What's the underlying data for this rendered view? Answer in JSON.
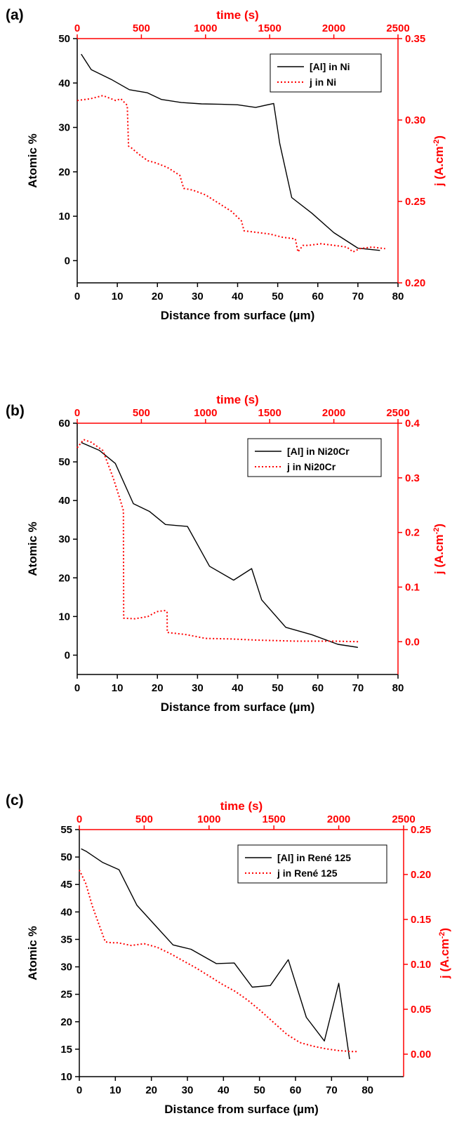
{
  "colors": {
    "aluminium": "#000000",
    "current": "#ff0000",
    "axis_black": "#000000",
    "axis_red": "#ff0000"
  },
  "chart_data": [
    {
      "panel": "(a)",
      "type": "line",
      "xlabel": "Distance from surface (µm)",
      "ylabel": "Atomic %",
      "x2label": "time (s)",
      "y2label": "j (A.cm-2)",
      "xlim": [
        0,
        80
      ],
      "ylim": [
        -5,
        50
      ],
      "x2lim": [
        0,
        2500
      ],
      "y2lim": [
        0.2,
        0.35
      ],
      "xticks": [
        0,
        10,
        20,
        30,
        40,
        50,
        60,
        70,
        80
      ],
      "yticks": [
        0,
        10,
        20,
        30,
        40,
        50
      ],
      "x2ticks": [
        0,
        500,
        1000,
        1500,
        2000,
        2500
      ],
      "y2ticks": [
        0.2,
        0.25,
        0.3,
        0.35
      ],
      "ytick_decimals": 0,
      "y2tick_decimals": 2,
      "legend_position": "top-right",
      "series": [
        {
          "name": "[Al] in Ni",
          "axis": "left",
          "style": "solid",
          "x": [
            1,
            3.5,
            8.5,
            13,
            17.5,
            21,
            26,
            31,
            36,
            40,
            44.5,
            49,
            50.5,
            53.5,
            58.5,
            64,
            70,
            75.5
          ],
          "y": [
            46.5,
            43,
            40.8,
            38.5,
            37.8,
            36.3,
            35.6,
            35.3,
            35.2,
            35.1,
            34.5,
            35.4,
            26.4,
            14.2,
            10.7,
            6.3,
            2.8,
            2.3
          ]
        },
        {
          "name": "j   in Ni",
          "axis": "right",
          "style": "dotted",
          "x": [
            0,
            100,
            200,
            300,
            340,
            390,
            400,
            420,
            480,
            550,
            600,
            700,
            760,
            800,
            830,
            900,
            1000,
            1100,
            1200,
            1280,
            1300,
            1400,
            1500,
            1600,
            1700,
            1720,
            1760,
            1800,
            1900,
            2000,
            2100,
            2150,
            2200,
            2300,
            2400
          ],
          "y": [
            0.312,
            0.313,
            0.315,
            0.312,
            0.313,
            0.309,
            0.284,
            0.283,
            0.279,
            0.275,
            0.274,
            0.271,
            0.268,
            0.266,
            0.258,
            0.257,
            0.254,
            0.249,
            0.244,
            0.238,
            0.232,
            0.231,
            0.23,
            0.228,
            0.227,
            0.219,
            0.223,
            0.223,
            0.224,
            0.223,
            0.222,
            0.219,
            0.221,
            0.222,
            0.221
          ]
        }
      ]
    },
    {
      "panel": "(b)",
      "type": "line",
      "xlabel": "Distance from surface (µm)",
      "ylabel": "Atomic %",
      "x2label": "time (s)",
      "y2label": "j (A.cm-2)",
      "xlim": [
        0,
        80
      ],
      "ylim": [
        -5,
        60
      ],
      "x2lim": [
        0,
        2500
      ],
      "y2lim": [
        -0.06,
        0.4
      ],
      "xticks": [
        0,
        10,
        20,
        30,
        40,
        50,
        60,
        70,
        80
      ],
      "yticks": [
        0,
        10,
        20,
        30,
        40,
        50,
        60
      ],
      "x2ticks": [
        0,
        500,
        1000,
        1500,
        2000,
        2500
      ],
      "y2ticks": [
        0,
        0.1,
        0.2,
        0.3,
        0.4
      ],
      "ytick_decimals": 0,
      "y2tick_decimals": 1,
      "legend_position": "top-right",
      "series": [
        {
          "name": "[Al] in Ni20Cr",
          "axis": "left",
          "style": "solid",
          "x": [
            1,
            5.5,
            9.5,
            14,
            18,
            22,
            27.5,
            33,
            39,
            43.5,
            46,
            52,
            58.5,
            65,
            70
          ],
          "y": [
            55,
            53,
            49.6,
            39.2,
            37.2,
            33.8,
            33.3,
            23,
            19.4,
            22.4,
            14.3,
            7.2,
            5.3,
            2.8,
            2
          ]
        },
        {
          "name": "j   in Ni20Cr",
          "axis": "right",
          "style": "dotted",
          "x": [
            0,
            50,
            110,
            200,
            280,
            335,
            360,
            362,
            450,
            550,
            620,
            680,
            700,
            702,
            850,
            1000,
            1200,
            1400,
            1700,
            2000,
            2190
          ],
          "y": [
            0.355,
            0.37,
            0.365,
            0.35,
            0.3,
            0.26,
            0.24,
            0.043,
            0.042,
            0.046,
            0.055,
            0.057,
            0.055,
            0.017,
            0.013,
            0.006,
            0.005,
            0.003,
            0.001,
            0.001,
            0.0
          ]
        }
      ]
    },
    {
      "panel": "(c)",
      "type": "line",
      "xlabel": "Distance from surface (µm)",
      "ylabel": "Atomic %",
      "x2label": "time (s)",
      "y2label": "j (A.cm-2)",
      "xlim": [
        0,
        90
      ],
      "ylim": [
        10,
        55
      ],
      "x2lim": [
        0,
        2500
      ],
      "y2lim": [
        -0.025,
        0.25
      ],
      "xticks": [
        0,
        10,
        20,
        30,
        40,
        50,
        60,
        70,
        80
      ],
      "yticks": [
        10,
        15,
        20,
        25,
        30,
        35,
        40,
        45,
        50,
        55
      ],
      "x2ticks": [
        0,
        500,
        1000,
        1500,
        2000,
        2500
      ],
      "y2ticks": [
        0,
        0.05,
        0.1,
        0.15,
        0.2,
        0.25
      ],
      "ytick_decimals": 0,
      "y2tick_decimals": 2,
      "legend_position": "top-right",
      "series": [
        {
          "name": "[Al] in René 125",
          "axis": "left",
          "style": "solid",
          "x": [
            0.5,
            2,
            6.5,
            11,
            16,
            21,
            26,
            31,
            38,
            43,
            48,
            53,
            58,
            63,
            68,
            72,
            75
          ],
          "y": [
            51.5,
            51,
            49,
            47.7,
            41.2,
            37.6,
            34,
            33.2,
            30.6,
            30.7,
            26.3,
            26.6,
            31.3,
            20.8,
            16.5,
            27,
            13.2
          ]
        },
        {
          "name": "j   in René 125",
          "axis": "right",
          "style": "dotted",
          "x": [
            0,
            50,
            100,
            150,
            200,
            250,
            300,
            400,
            500,
            600,
            700,
            800,
            900,
            1000,
            1100,
            1200,
            1300,
            1400,
            1500,
            1600,
            1700,
            1800,
            1900,
            2000,
            2100,
            2150
          ],
          "y": [
            0.205,
            0.19,
            0.165,
            0.145,
            0.125,
            0.124,
            0.124,
            0.121,
            0.123,
            0.119,
            0.112,
            0.104,
            0.096,
            0.087,
            0.078,
            0.07,
            0.06,
            0.048,
            0.035,
            0.022,
            0.013,
            0.009,
            0.006,
            0.004,
            0.003,
            0.003
          ]
        }
      ]
    }
  ]
}
